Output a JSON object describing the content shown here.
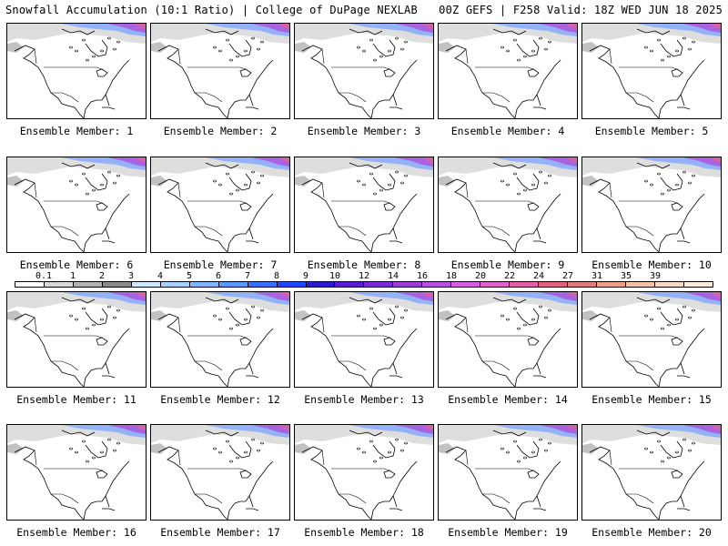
{
  "header": {
    "title_left": "Snowfall Accumulation (10:1 Ratio) | College of DuPage NEXLAB",
    "title_right": "00Z GEFS | F258 Valid: 18Z WED JUN 18 2025"
  },
  "members": [
    "Ensemble Member: 1",
    "Ensemble Member: 2",
    "Ensemble Member: 3",
    "Ensemble Member: 4",
    "Ensemble Member: 5",
    "Ensemble Member: 6",
    "Ensemble Member: 7",
    "Ensemble Member: 8",
    "Ensemble Member: 9",
    "Ensemble Member: 10",
    "Ensemble Member: 11",
    "Ensemble Member: 12",
    "Ensemble Member: 13",
    "Ensemble Member: 14",
    "Ensemble Member: 15",
    "Ensemble Member: 16",
    "Ensemble Member: 17",
    "Ensemble Member: 18",
    "Ensemble Member: 19",
    "Ensemble Member: 20"
  ],
  "colorbar": {
    "labels": [
      "0.1",
      "1",
      "2",
      "3",
      "4",
      "5",
      "6",
      "7",
      "8",
      "9",
      "10",
      "12",
      "14",
      "16",
      "18",
      "20",
      "22",
      "24",
      "27",
      "31",
      "35",
      "39"
    ],
    "colors": [
      "#ffffff",
      "#d9d9d9",
      "#b3b3b3",
      "#8c8c8c",
      "#cde8ff",
      "#a6d1ff",
      "#7fb6ff",
      "#5c96ff",
      "#3a70ff",
      "#1f48ff",
      "#2b1ccf",
      "#5a1ccf",
      "#7a2bd6",
      "#9a3ddb",
      "#b84fe0",
      "#d45fe0",
      "#e064c8",
      "#e35fa5",
      "#e0607e",
      "#e07c7c",
      "#eca08c",
      "#f3c3a8",
      "#f8dcc6",
      "#fbecdc"
    ]
  }
}
